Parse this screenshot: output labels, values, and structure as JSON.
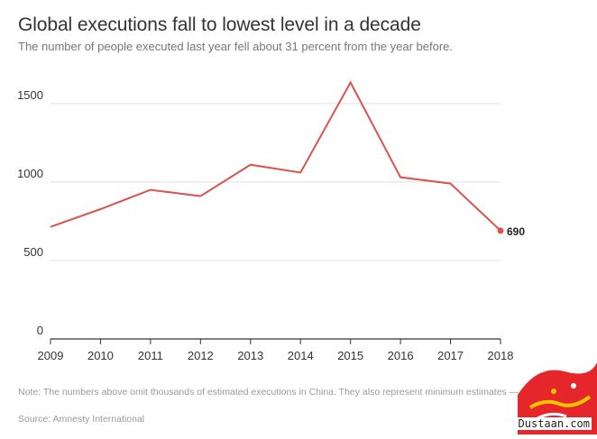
{
  "header": {
    "title": "Global executions fall to lowest level in a decade",
    "subtitle": "The number of people executed last year fell about 31 percent from the year before."
  },
  "chart_data": {
    "type": "line",
    "title": "Global executions fall to lowest level in a decade",
    "subtitle": "The number of people executed last year fell about 31 percent from the year before.",
    "xlabel": "",
    "ylabel": "",
    "x": [
      "2009",
      "2010",
      "2011",
      "2012",
      "2013",
      "2014",
      "2015",
      "2016",
      "2017",
      "2018"
    ],
    "series": [
      {
        "values": [
          714,
          827,
          950,
          910,
          1110,
          1060,
          1634,
          1030,
          990,
          690
        ]
      }
    ],
    "ylim": [
      0,
      1700
    ],
    "yticks": [
      0,
      500,
      1000,
      1500
    ],
    "grid": true,
    "end_label": "690",
    "colors": {
      "line": "#d9534f",
      "grid": "#e0e0e0",
      "axis": "#333333"
    }
  },
  "footer": {
    "note": "Note: The numbers above omit thousands of estimated executions in China. They also represent minimum estimates — the true number of executions may be much higher.",
    "source": "Source: Amnesty International"
  },
  "watermark": {
    "logo_text": "مجله دوستان",
    "site": "Dustaan.com"
  }
}
